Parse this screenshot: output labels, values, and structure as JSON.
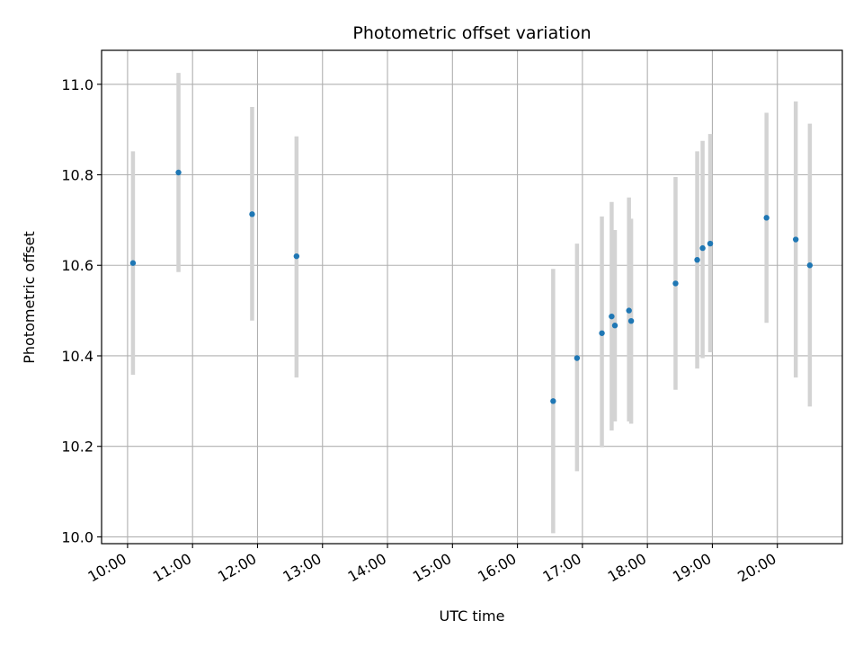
{
  "chart_data": {
    "type": "scatter",
    "title": "Photometric offset variation",
    "xlabel": "UTC time",
    "ylabel": "Photometric offset",
    "x_unit": "hours UTC",
    "xlim": [
      "09:36",
      "21:00"
    ],
    "ylim": [
      9.985,
      11.075
    ],
    "x_ticks": [
      "10:00",
      "11:00",
      "12:00",
      "13:00",
      "14:00",
      "15:00",
      "16:00",
      "17:00",
      "18:00",
      "19:00",
      "20:00"
    ],
    "y_ticks": [
      "10.0",
      "10.2",
      "10.4",
      "10.6",
      "10.8",
      "11.0"
    ],
    "y_tick_values": [
      10.0,
      10.2,
      10.4,
      10.6,
      10.8,
      11.0
    ],
    "grid": true,
    "marker_color": "#1f77b4",
    "errorbar_color": "#d3d3d3",
    "points": [
      {
        "x": "10:05",
        "y": 10.605,
        "ylow": 10.358,
        "yhigh": 10.852
      },
      {
        "x": "10:47",
        "y": 10.805,
        "ylow": 10.585,
        "yhigh": 11.025
      },
      {
        "x": "11:55",
        "y": 10.713,
        "ylow": 10.478,
        "yhigh": 10.95
      },
      {
        "x": "12:36",
        "y": 10.62,
        "ylow": 10.352,
        "yhigh": 10.885
      },
      {
        "x": "16:33",
        "y": 10.3,
        "ylow": 10.008,
        "yhigh": 10.592
      },
      {
        "x": "16:55",
        "y": 10.395,
        "ylow": 10.145,
        "yhigh": 10.648
      },
      {
        "x": "17:18",
        "y": 10.45,
        "ylow": 10.198,
        "yhigh": 10.708
      },
      {
        "x": "17:27",
        "y": 10.487,
        "ylow": 10.235,
        "yhigh": 10.74
      },
      {
        "x": "17:30",
        "y": 10.467,
        "ylow": 10.255,
        "yhigh": 10.678
      },
      {
        "x": "17:43",
        "y": 10.5,
        "ylow": 10.255,
        "yhigh": 10.75
      },
      {
        "x": "17:45",
        "y": 10.477,
        "ylow": 10.25,
        "yhigh": 10.703
      },
      {
        "x": "18:26",
        "y": 10.56,
        "ylow": 10.325,
        "yhigh": 10.795
      },
      {
        "x": "18:46",
        "y": 10.612,
        "ylow": 10.372,
        "yhigh": 10.852
      },
      {
        "x": "18:51",
        "y": 10.638,
        "ylow": 10.395,
        "yhigh": 10.875
      },
      {
        "x": "18:58",
        "y": 10.648,
        "ylow": 10.408,
        "yhigh": 10.89
      },
      {
        "x": "19:50",
        "y": 10.705,
        "ylow": 10.473,
        "yhigh": 10.937
      },
      {
        "x": "20:17",
        "y": 10.657,
        "ylow": 10.352,
        "yhigh": 10.962
      },
      {
        "x": "20:30",
        "y": 10.6,
        "ylow": 10.288,
        "yhigh": 10.913
      }
    ]
  }
}
